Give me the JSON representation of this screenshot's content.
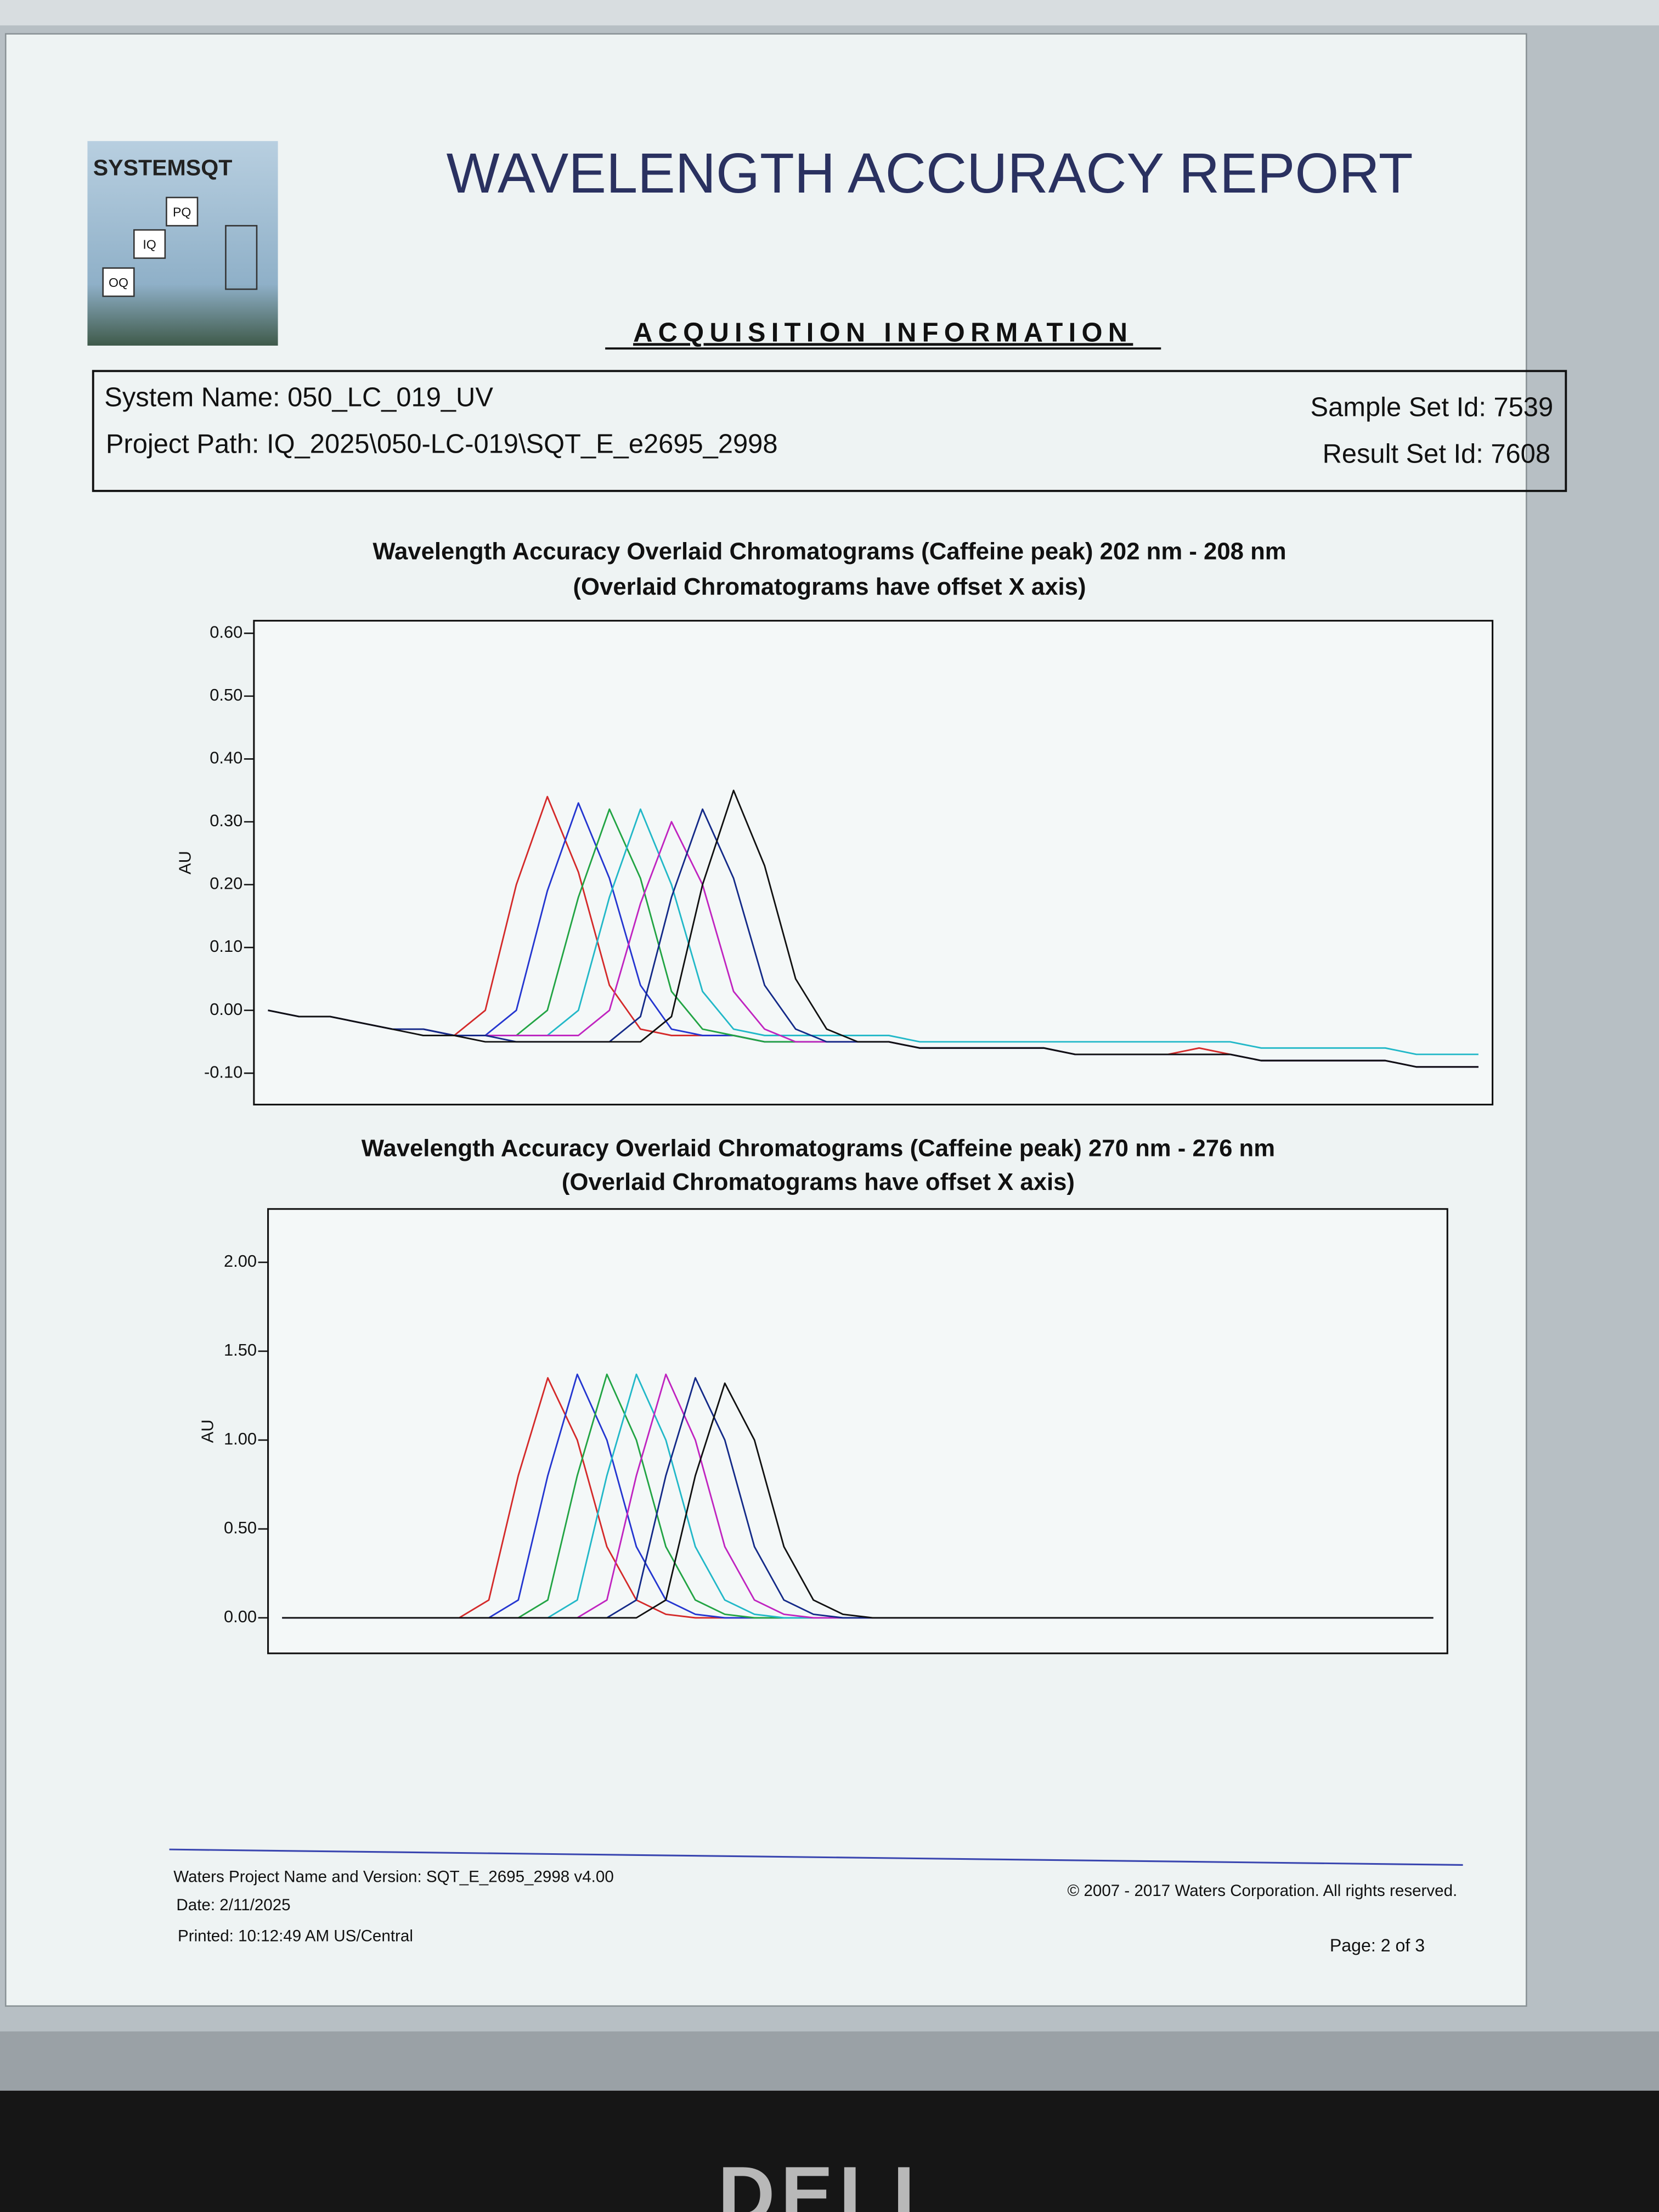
{
  "header": {
    "logo": "SYSTEMSQT",
    "logo_icons": [
      "PQ",
      "IQ",
      "OQ"
    ],
    "title": "WAVELENGTH ACCURACY REPORT",
    "section": "ACQUISITION INFORMATION"
  },
  "acquisition": {
    "system_name": "System Name: 050_LC_019_UV",
    "project_path": "Project Path: IQ_2025\\050-LC-019\\SQT_E_e2695_2998",
    "sample_set_id": "Sample Set Id: 7539",
    "result_set_id": "Result Set Id: 7608"
  },
  "footer": {
    "project": "Waters Project Name and Version: SQT_E_2695_2998 v4.00",
    "date": "Date: 2/11/2025",
    "printed": "Printed: 10:12:49 AM US/Central",
    "copyright": "© 2007 - 2017 Waters Corporation. All rights reserved.",
    "page": "Page: 2 of 3"
  },
  "monitor": {
    "brand": "DELL"
  },
  "chart_data": [
    {
      "type": "line",
      "title": "Wavelength Accuracy Overlaid Chromatograms (Caffeine peak) 202 nm - 208 nm",
      "subtitle": "(Overlaid Chromatograms have offset X axis)",
      "y_label": "AU",
      "ylim": [
        -0.15,
        0.62
      ],
      "yticks": [
        {
          "value": -0.1,
          "label": "-0.10"
        },
        {
          "value": 0,
          "label": "0.00"
        },
        {
          "value": 0.1,
          "label": "0.10"
        },
        {
          "value": 0.2,
          "label": "0.20"
        },
        {
          "value": 0.3,
          "label": "0.30"
        },
        {
          "value": 0.4,
          "label": "0.40"
        },
        {
          "value": 0.5,
          "label": "0.50"
        },
        {
          "value": 0.6,
          "label": "0.60"
        }
      ],
      "categories": [
        null,
        null,
        null,
        null,
        null,
        null,
        null,
        null,
        null,
        null,
        null,
        null,
        null,
        null,
        null,
        null,
        null,
        null,
        null,
        null,
        null,
        null,
        null,
        null,
        null,
        null,
        null,
        null,
        null,
        null,
        null,
        null,
        null,
        null,
        null,
        null,
        null,
        null,
        null,
        null
      ],
      "series": [
        {
          "color": "#d42a2a",
          "values": [
            0,
            -0.01,
            -0.01,
            -0.02,
            -0.03,
            -0.03,
            -0.04,
            0,
            0.2,
            0.34,
            0.22,
            0.04,
            -0.03,
            -0.04,
            -0.04,
            -0.04,
            -0.05,
            -0.05,
            -0.05,
            -0.05,
            -0.05,
            -0.06,
            -0.06,
            -0.06,
            -0.06,
            -0.06,
            -0.07,
            -0.07,
            -0.07,
            -0.07,
            -0.06,
            -0.07,
            -0.08,
            -0.08,
            -0.08,
            -0.08,
            -0.08,
            -0.09,
            -0.09,
            -0.09
          ]
        },
        {
          "color": "#2436d0",
          "values": [
            0,
            -0.01,
            -0.01,
            -0.02,
            -0.03,
            -0.03,
            -0.04,
            -0.04,
            0,
            0.19,
            0.33,
            0.21,
            0.04,
            -0.03,
            -0.04,
            -0.04,
            -0.05,
            -0.05,
            -0.05,
            -0.05,
            -0.05,
            -0.06,
            -0.06,
            -0.06,
            -0.06,
            -0.06,
            -0.07,
            -0.07,
            -0.07,
            -0.07,
            -0.07,
            -0.07,
            -0.08,
            -0.08,
            -0.08,
            -0.08,
            -0.08,
            -0.09,
            -0.09,
            -0.09
          ]
        },
        {
          "color": "#22a444",
          "values": [
            0,
            -0.01,
            -0.01,
            -0.02,
            -0.03,
            -0.03,
            -0.04,
            -0.04,
            -0.04,
            0,
            0.18,
            0.32,
            0.21,
            0.03,
            -0.03,
            -0.04,
            -0.05,
            -0.05,
            -0.05,
            -0.05,
            -0.05,
            -0.06,
            -0.06,
            -0.06,
            -0.06,
            -0.06,
            -0.07,
            -0.07,
            -0.07,
            -0.07,
            -0.07,
            -0.07,
            -0.08,
            -0.08,
            -0.08,
            -0.08,
            -0.08,
            -0.09,
            -0.09,
            -0.09
          ]
        },
        {
          "color": "#22b8c8",
          "values": [
            0,
            -0.01,
            -0.01,
            -0.02,
            -0.03,
            -0.03,
            -0.04,
            -0.04,
            -0.04,
            -0.04,
            0,
            0.18,
            0.32,
            0.2,
            0.03,
            -0.03,
            -0.04,
            -0.04,
            -0.04,
            -0.04,
            -0.04,
            -0.05,
            -0.05,
            -0.05,
            -0.05,
            -0.05,
            -0.05,
            -0.05,
            -0.05,
            -0.05,
            -0.05,
            -0.05,
            -0.06,
            -0.06,
            -0.06,
            -0.06,
            -0.06,
            -0.07,
            -0.07,
            -0.07
          ]
        },
        {
          "color": "#c024c0",
          "values": [
            0,
            -0.01,
            -0.01,
            -0.02,
            -0.03,
            -0.03,
            -0.04,
            -0.04,
            -0.04,
            -0.04,
            -0.04,
            0,
            0.17,
            0.3,
            0.2,
            0.03,
            -0.03,
            -0.05,
            -0.05,
            -0.05,
            -0.05,
            -0.06,
            -0.06,
            -0.06,
            -0.06,
            -0.06,
            -0.07,
            -0.07,
            -0.07,
            -0.07,
            -0.07,
            -0.07,
            -0.08,
            -0.08,
            -0.08,
            -0.08,
            -0.08,
            -0.09,
            -0.09,
            -0.09
          ]
        },
        {
          "color": "#142a88",
          "values": [
            0,
            -0.01,
            -0.01,
            -0.02,
            -0.03,
            -0.03,
            -0.04,
            -0.04,
            -0.05,
            -0.05,
            -0.05,
            -0.05,
            -0.01,
            0.18,
            0.32,
            0.21,
            0.04,
            -0.03,
            -0.05,
            -0.05,
            -0.05,
            -0.06,
            -0.06,
            -0.06,
            -0.06,
            -0.06,
            -0.07,
            -0.07,
            -0.07,
            -0.07,
            -0.07,
            -0.07,
            -0.08,
            -0.08,
            -0.08,
            -0.08,
            -0.08,
            -0.09,
            -0.09,
            -0.09
          ]
        },
        {
          "color": "#111111",
          "values": [
            0,
            -0.01,
            -0.01,
            -0.02,
            -0.03,
            -0.04,
            -0.04,
            -0.05,
            -0.05,
            -0.05,
            -0.05,
            -0.05,
            -0.05,
            -0.01,
            0.2,
            0.35,
            0.23,
            0.05,
            -0.03,
            -0.05,
            -0.05,
            -0.06,
            -0.06,
            -0.06,
            -0.06,
            -0.06,
            -0.07,
            -0.07,
            -0.07,
            -0.07,
            -0.07,
            -0.07,
            -0.08,
            -0.08,
            -0.08,
            -0.08,
            -0.08,
            -0.09,
            -0.09,
            -0.09
          ]
        }
      ]
    },
    {
      "type": "line",
      "title": "Wavelength Accuracy Overlaid Chromatograms (Caffeine peak) 270 nm - 276 nm",
      "subtitle": "(Overlaid Chromatograms have offset X axis)",
      "y_label": "AU",
      "ylim": [
        -0.2,
        2.3
      ],
      "yticks": [
        {
          "value": 0,
          "label": "0.00"
        },
        {
          "value": 0.5,
          "label": "0.50"
        },
        {
          "value": 1,
          "label": "1.00"
        },
        {
          "value": 1.5,
          "label": "1.50"
        },
        {
          "value": 2,
          "label": "2.00"
        }
      ],
      "categories": [
        null,
        null,
        null,
        null,
        null,
        null,
        null,
        null,
        null,
        null,
        null,
        null,
        null,
        null,
        null,
        null,
        null,
        null,
        null,
        null,
        null,
        null,
        null,
        null,
        null,
        null,
        null,
        null,
        null,
        null,
        null,
        null,
        null,
        null,
        null,
        null,
        null,
        null,
        null,
        null
      ],
      "series": [
        {
          "color": "#d42a2a",
          "values": [
            0,
            0,
            0,
            0,
            0,
            0,
            0,
            0.1,
            0.8,
            1.35,
            1.0,
            0.4,
            0.1,
            0.02,
            0,
            0,
            0,
            0,
            0,
            0,
            0,
            0,
            0,
            0,
            0,
            0,
            0,
            0,
            0,
            0,
            0,
            0,
            0,
            0,
            0,
            0,
            0,
            0,
            0,
            0
          ]
        },
        {
          "color": "#2436d0",
          "values": [
            0,
            0,
            0,
            0,
            0,
            0,
            0,
            0,
            0.1,
            0.8,
            1.37,
            1.0,
            0.4,
            0.1,
            0.02,
            0,
            0,
            0,
            0,
            0,
            0,
            0,
            0,
            0,
            0,
            0,
            0,
            0,
            0,
            0,
            0,
            0,
            0,
            0,
            0,
            0,
            0,
            0,
            0,
            0
          ]
        },
        {
          "color": "#22a444",
          "values": [
            0,
            0,
            0,
            0,
            0,
            0,
            0,
            0,
            0,
            0.1,
            0.8,
            1.37,
            1.0,
            0.4,
            0.1,
            0.02,
            0,
            0,
            0,
            0,
            0,
            0,
            0,
            0,
            0,
            0,
            0,
            0,
            0,
            0,
            0,
            0,
            0,
            0,
            0,
            0,
            0,
            0,
            0,
            0
          ]
        },
        {
          "color": "#22b8c8",
          "values": [
            0,
            0,
            0,
            0,
            0,
            0,
            0,
            0,
            0,
            0,
            0.1,
            0.8,
            1.37,
            1.0,
            0.4,
            0.1,
            0.02,
            0,
            0,
            0,
            0,
            0,
            0,
            0,
            0,
            0,
            0,
            0,
            0,
            0,
            0,
            0,
            0,
            0,
            0,
            0,
            0,
            0,
            0,
            0
          ]
        },
        {
          "color": "#c024c0",
          "values": [
            0,
            0,
            0,
            0,
            0,
            0,
            0,
            0,
            0,
            0,
            0,
            0.1,
            0.8,
            1.37,
            1.0,
            0.4,
            0.1,
            0.02,
            0,
            0,
            0,
            0,
            0,
            0,
            0,
            0,
            0,
            0,
            0,
            0,
            0,
            0,
            0,
            0,
            0,
            0,
            0,
            0,
            0,
            0
          ]
        },
        {
          "color": "#142a88",
          "values": [
            0,
            0,
            0,
            0,
            0,
            0,
            0,
            0,
            0,
            0,
            0,
            0,
            0.1,
            0.8,
            1.35,
            1.0,
            0.4,
            0.1,
            0.02,
            0,
            0,
            0,
            0,
            0,
            0,
            0,
            0,
            0,
            0,
            0,
            0,
            0,
            0,
            0,
            0,
            0,
            0,
            0,
            0,
            0
          ]
        },
        {
          "color": "#111111",
          "values": [
            0,
            0,
            0,
            0,
            0,
            0,
            0,
            0,
            0,
            0,
            0,
            0,
            0,
            0.1,
            0.8,
            1.32,
            1.0,
            0.4,
            0.1,
            0.02,
            0,
            0,
            0,
            0,
            0,
            0,
            0,
            0,
            0,
            0,
            0,
            0,
            0,
            0,
            0,
            0,
            0,
            0,
            0,
            0
          ]
        }
      ]
    }
  ]
}
